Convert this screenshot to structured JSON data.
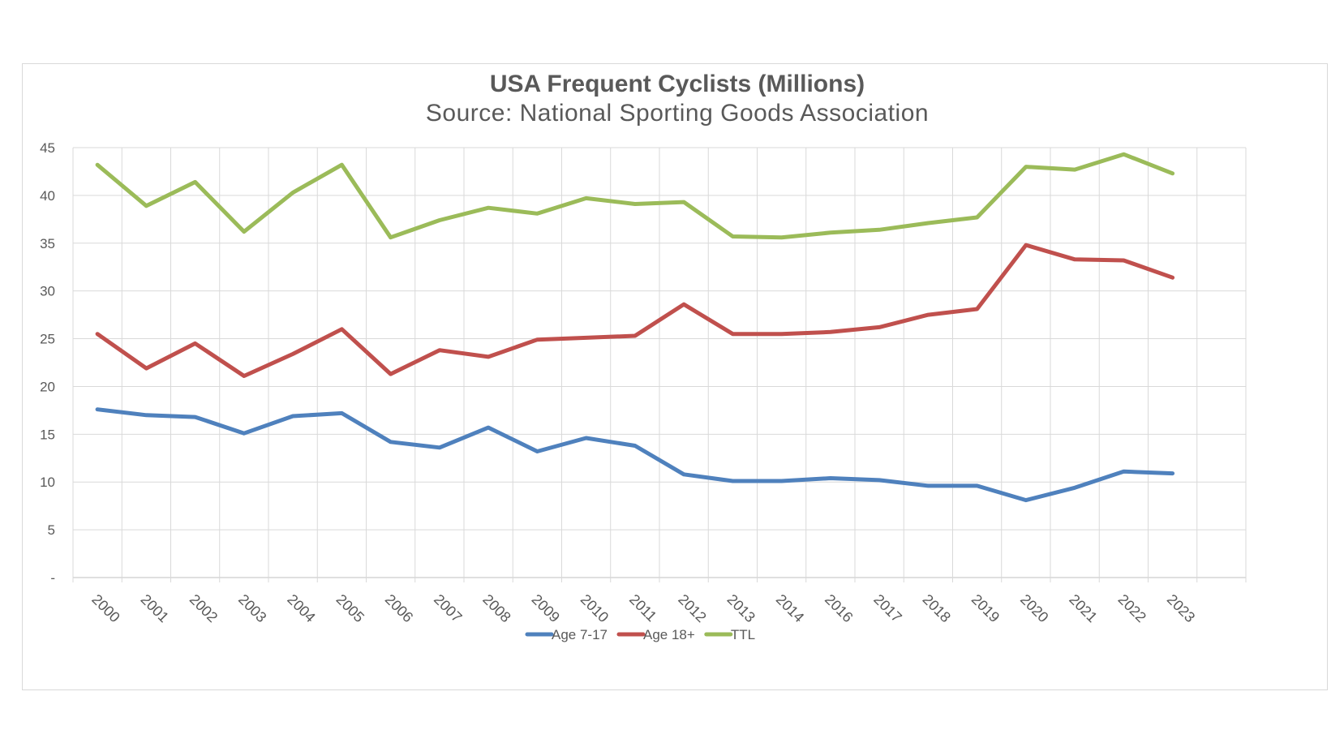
{
  "chart_data": {
    "type": "line",
    "title": "USA Frequent Cyclists (Millions)",
    "subtitle": "Source: National Sporting Goods Association",
    "xlabel": "",
    "ylabel": "",
    "ylim": [
      0,
      45
    ],
    "yticks": [
      {
        "value": 0,
        "label": "-"
      },
      {
        "value": 5,
        "label": "5"
      },
      {
        "value": 10,
        "label": "10"
      },
      {
        "value": 15,
        "label": "15"
      },
      {
        "value": 20,
        "label": "20"
      },
      {
        "value": 25,
        "label": "25"
      },
      {
        "value": 30,
        "label": "30"
      },
      {
        "value": 35,
        "label": "35"
      },
      {
        "value": 40,
        "label": "40"
      },
      {
        "value": 45,
        "label": "45"
      }
    ],
    "categories": [
      "2000",
      "2001",
      "2002",
      "2003",
      "2004",
      "2005",
      "2006",
      "2007",
      "2008",
      "2009",
      "2010",
      "2011",
      "2012",
      "2013",
      "2014",
      "2016",
      "2017",
      "2018",
      "2019",
      "2020",
      "2021",
      "2022",
      "2023"
    ],
    "grid": true,
    "legend_position": "bottom",
    "series": [
      {
        "name": "Age 7-17",
        "color": "#4f81bd",
        "values": [
          17.6,
          17.0,
          16.8,
          15.1,
          16.9,
          17.2,
          14.2,
          13.6,
          15.7,
          13.2,
          14.6,
          13.8,
          10.8,
          10.1,
          10.1,
          10.4,
          10.2,
          9.6,
          9.6,
          8.1,
          9.4,
          11.1,
          10.9
        ]
      },
      {
        "name": "Age 18+",
        "color": "#c0504d",
        "values": [
          25.5,
          21.9,
          24.5,
          21.1,
          23.4,
          26.0,
          21.3,
          23.8,
          23.1,
          24.9,
          25.1,
          25.3,
          28.6,
          25.5,
          25.5,
          25.7,
          26.2,
          27.5,
          28.1,
          34.8,
          33.3,
          33.2,
          31.4
        ]
      },
      {
        "name": "TTL",
        "color": "#9bbb59",
        "values": [
          43.2,
          38.9,
          41.4,
          36.2,
          40.3,
          43.2,
          35.6,
          37.4,
          38.7,
          38.1,
          39.7,
          39.1,
          39.3,
          35.7,
          35.6,
          36.1,
          36.4,
          37.1,
          37.7,
          43.0,
          42.7,
          44.3,
          42.3
        ]
      }
    ]
  }
}
